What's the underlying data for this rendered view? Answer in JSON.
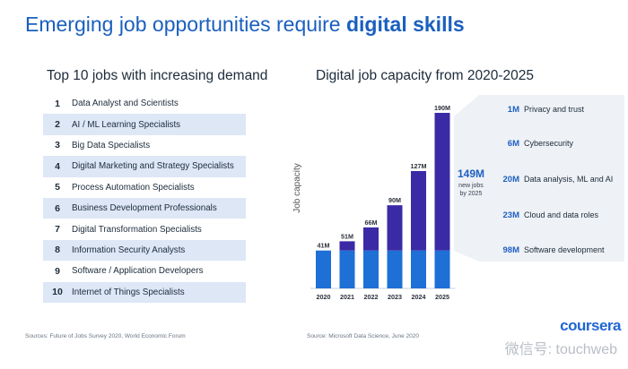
{
  "title": {
    "prefix": "Emerging job opportunities require ",
    "highlight": "digital skills"
  },
  "left": {
    "heading": "Top 10 jobs with increasing demand",
    "jobs": [
      {
        "rank": "1",
        "label": "Data Analyst and Scientists"
      },
      {
        "rank": "2",
        "label": "AI / ML Learning Specialists"
      },
      {
        "rank": "3",
        "label": "Big Data Specialists"
      },
      {
        "rank": "4",
        "label": "Digital Marketing and Strategy Specialists"
      },
      {
        "rank": "5",
        "label": "Process Automation Specialists"
      },
      {
        "rank": "6",
        "label": "Business Development Professionals"
      },
      {
        "rank": "7",
        "label": "Digital Transformation Specialists"
      },
      {
        "rank": "8",
        "label": "Information Security Analysts"
      },
      {
        "rank": "9",
        "label": "Software / Application Developers"
      },
      {
        "rank": "10",
        "label": "Internet of Things Specialists"
      }
    ]
  },
  "right": {
    "heading": "Digital job capacity from 2020-2025"
  },
  "chart_data": {
    "type": "bar",
    "stacked": true,
    "categories": [
      "2020",
      "2021",
      "2022",
      "2023",
      "2024",
      "2025"
    ],
    "totals": [
      41,
      51,
      66,
      90,
      127,
      190
    ],
    "total_labels": [
      "41M",
      "51M",
      "66M",
      "90M",
      "127M",
      "190M"
    ],
    "base_value": 41,
    "ylabel": "Job capacity",
    "annotation": {
      "value": "149M",
      "line1": "new jobs",
      "line2": "by 2025"
    },
    "breakdown": [
      {
        "value": "1M",
        "label": "Privacy and trust"
      },
      {
        "value": "6M",
        "label": "Cybersecurity"
      },
      {
        "value": "20M",
        "label": "Data analysis, ML and AI"
      },
      {
        "value": "23M",
        "label": "Cloud and data roles"
      },
      {
        "value": "98M",
        "label": "Software development"
      }
    ],
    "colors": {
      "base": "#1e6fd6",
      "growth": "#3a2aa6",
      "text_value": "#1e5fc4",
      "panel": "#eef1f5"
    }
  },
  "sources": {
    "left": "Sources: Future of Jobs Survey 2020, World Economic Forum",
    "right": "Source: Microsoft Data Science,  June 2020"
  },
  "brand": "coursera",
  "watermark": "微信号: touchweb"
}
